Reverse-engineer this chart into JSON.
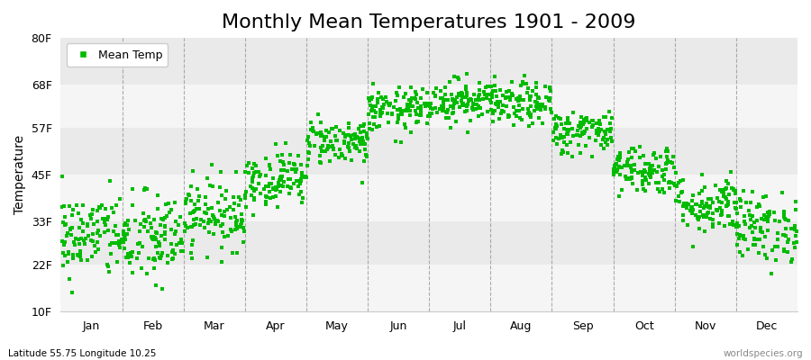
{
  "title": "Monthly Mean Temperatures 1901 - 2009",
  "ylabel": "Temperature",
  "ytick_labels": [
    "10F",
    "22F",
    "33F",
    "45F",
    "57F",
    "68F",
    "80F"
  ],
  "ytick_values": [
    10,
    22,
    33,
    45,
    57,
    68,
    80
  ],
  "ylim": [
    10,
    80
  ],
  "months": [
    "Jan",
    "Feb",
    "Mar",
    "Apr",
    "May",
    "Jun",
    "Jul",
    "Aug",
    "Sep",
    "Oct",
    "Nov",
    "Dec"
  ],
  "month_x_positions": [
    0.5,
    1.5,
    2.5,
    3.5,
    4.5,
    5.5,
    6.5,
    7.5,
    8.5,
    9.5,
    10.5,
    11.5
  ],
  "dot_color": "#00bb00",
  "background_color": "#ffffff",
  "band_light": "#f5f5f5",
  "band_dark": "#eaeaea",
  "legend_label": "Mean Temp",
  "bottom_left_text": "Latitude 55.75 Longitude 10.25",
  "bottom_right_text": "worldspecies.org",
  "title_fontsize": 16,
  "label_fontsize": 10,
  "tick_fontsize": 9,
  "n_years": 109,
  "mean_temps_F": [
    29.5,
    28.5,
    35.0,
    44.0,
    53.5,
    61.5,
    64.0,
    63.0,
    56.0,
    46.5,
    37.5,
    31.5
  ],
  "std_temps_F": [
    5.5,
    6.0,
    4.5,
    3.5,
    3.0,
    2.8,
    2.8,
    2.8,
    2.8,
    3.2,
    3.8,
    4.5
  ],
  "seed": 42
}
